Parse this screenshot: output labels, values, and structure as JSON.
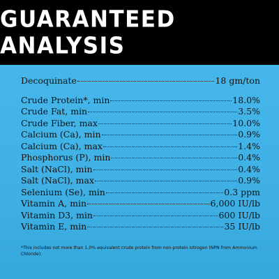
{
  "header": {
    "title": "GUARANTEED ANALYSIS"
  },
  "analysis": {
    "rows": [
      {
        "label": "Decoquinate",
        "value": "18 gm/ton"
      },
      {
        "label": "Crude Protein*, min",
        "value": "18.0%"
      },
      {
        "label": "Crude Fat, min",
        "value": "3.5%"
      },
      {
        "label": "Crude Fiber, max",
        "value": "10.0%"
      },
      {
        "label": "Calcium (Ca), min",
        "value": "0.9%"
      },
      {
        "label": "Calcium (Ca), max",
        "value": "1.4%"
      },
      {
        "label": "Phosphorus (P), min",
        "value": "0.4%"
      },
      {
        "label": "Salt (NaCl), min",
        "value": "0.4%"
      },
      {
        "label": "Salt (NaCl), max",
        "value": "0.9%"
      },
      {
        "label": "Selenium (Se), min",
        "value": "0.3 ppm"
      },
      {
        "label": "Vitamin A, min",
        "value": "6,000 IU/lb"
      },
      {
        "label": "Vitamin D3, min",
        "value": "600 IU/lb"
      },
      {
        "label": "Vitamin E, min",
        "value": "35 IU/lb"
      }
    ]
  },
  "footnote": {
    "text": "*This includes not more than 1.0% equivalent crude protein from non-protein nitrogen (NPN from Ammonium Chloride)."
  },
  "colors": {
    "header_bg": "#000000",
    "header_text": "#ffffff",
    "panel_bg": "#41b3e6",
    "text": "#111111"
  }
}
